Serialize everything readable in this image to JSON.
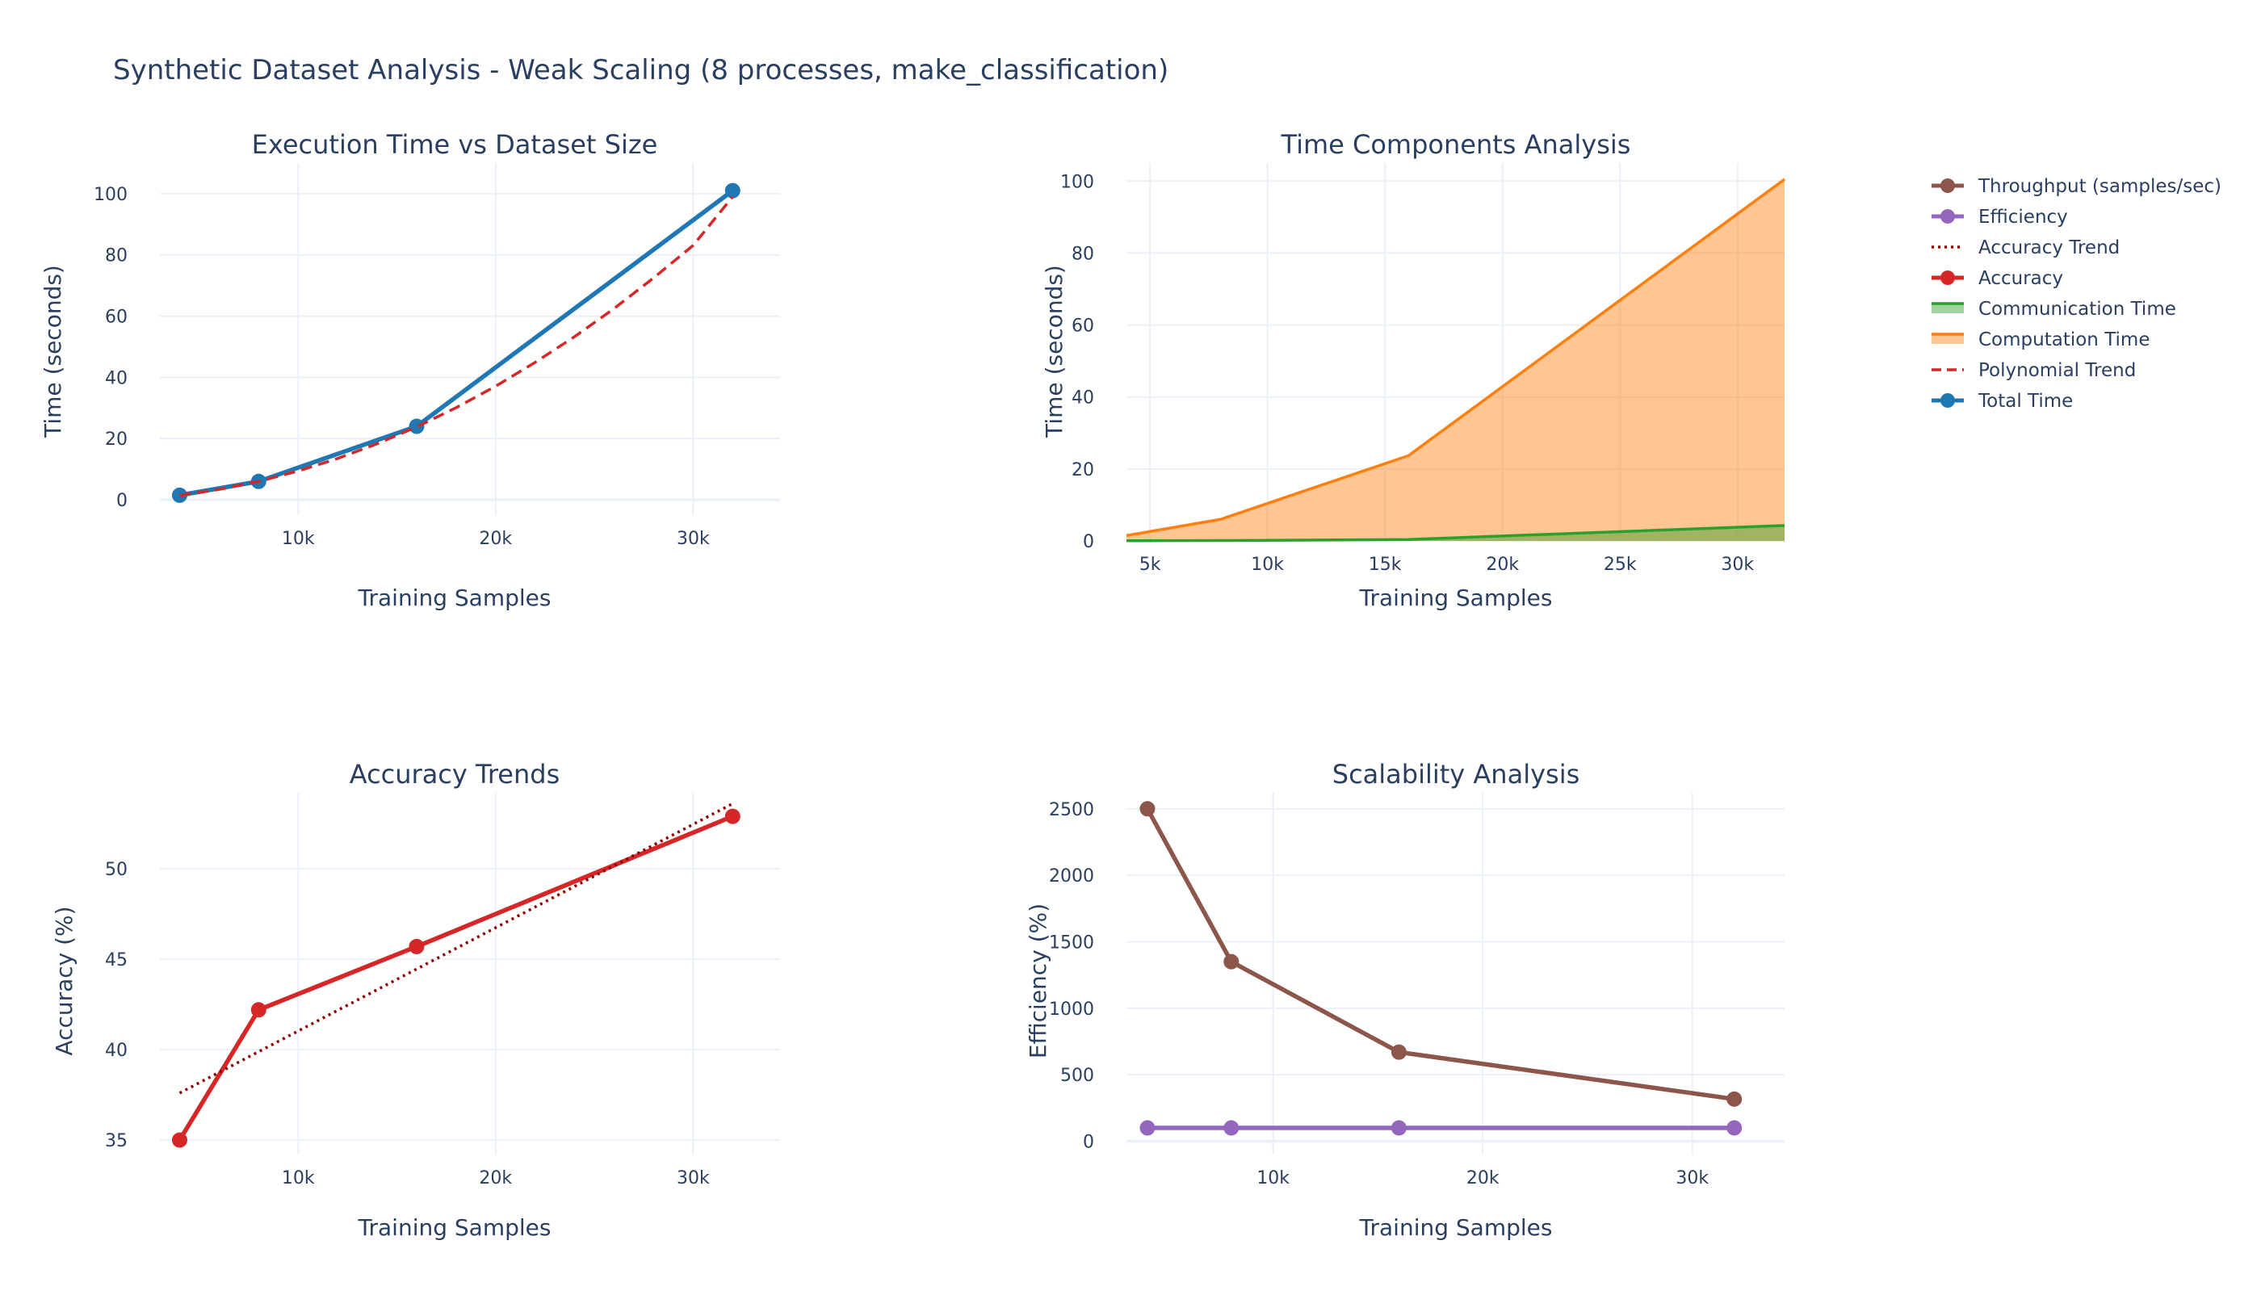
{
  "title": "Synthetic Dataset Analysis - Weak Scaling (8 processes, make_classification)",
  "colors": {
    "total": "#1f77b4",
    "poly": "#d62728",
    "computation": "#ff7f0e",
    "communication": "#2ca02c",
    "accuracy": "#d62728",
    "accuracy_trend": "#8b0000",
    "efficiency": "#9467bd",
    "throughput": "#8c564b",
    "grid": "#ebf0f8",
    "text": "#2a3f5f"
  },
  "legend": [
    {
      "label": "Throughput (samples/sec)",
      "style": "line-marker",
      "color": "#8c564b"
    },
    {
      "label": "Efficiency",
      "style": "line-marker",
      "color": "#9467bd"
    },
    {
      "label": "Accuracy Trend",
      "style": "dot",
      "color": "#8b0000"
    },
    {
      "label": "Accuracy",
      "style": "line-marker",
      "color": "#d62728"
    },
    {
      "label": "Communication Time",
      "style": "area",
      "color": "#2ca02c"
    },
    {
      "label": "Computation Time",
      "style": "area",
      "color": "#ff7f0e"
    },
    {
      "label": "Polynomial Trend",
      "style": "dash",
      "color": "#d62728"
    },
    {
      "label": "Total Time",
      "style": "line-marker",
      "color": "#1f77b4"
    }
  ],
  "chart_data": [
    {
      "type": "line",
      "title": "Execution Time vs Dataset Size",
      "xlabel": "Training Samples",
      "ylabel": "Time (seconds)",
      "xlim": [
        3000,
        34400
      ],
      "ylim": [
        -5,
        110
      ],
      "xticks": [
        10000,
        20000,
        30000
      ],
      "xtick_labels": [
        "10k",
        "20k",
        "30k"
      ],
      "yticks": [
        0,
        20,
        40,
        60,
        80,
        100
      ],
      "ytick_labels": [
        "0",
        "20",
        "40",
        "60",
        "80",
        "100"
      ],
      "series": [
        {
          "name": "Total Time",
          "style": "line-marker",
          "x": [
            4000,
            8000,
            16000,
            32000
          ],
          "y": [
            1.5,
            6.0,
            24.0,
            101.0
          ]
        },
        {
          "name": "Polynomial Trend",
          "style": "dash",
          "x": [
            4000,
            6000,
            8000,
            10000,
            12000,
            14000,
            16000,
            18000,
            20000,
            22000,
            24000,
            26000,
            28000,
            30000,
            32000
          ],
          "y": [
            1.4,
            3.4,
            6.0,
            9.4,
            13.5,
            18.3,
            23.8,
            30.1,
            37.1,
            44.9,
            53.3,
            62.5,
            72.5,
            83.1,
            99.0
          ]
        }
      ]
    },
    {
      "type": "area",
      "title": "Time Components Analysis",
      "xlabel": "Training Samples",
      "ylabel": "Time (seconds)",
      "xlim": [
        4000,
        32000
      ],
      "ylim": [
        0,
        105
      ],
      "xticks": [
        5000,
        10000,
        15000,
        20000,
        25000,
        30000
      ],
      "xtick_labels": [
        "5k",
        "10k",
        "15k",
        "20k",
        "25k",
        "30k"
      ],
      "yticks": [
        0,
        20,
        40,
        60,
        80,
        100
      ],
      "ytick_labels": [
        "0",
        "20",
        "40",
        "60",
        "80",
        "100"
      ],
      "series": [
        {
          "name": "Computation Time",
          "x": [
            4000,
            8000,
            16000,
            32000
          ],
          "y": [
            1.5,
            6.0,
            23.7,
            100.5
          ]
        },
        {
          "name": "Communication Time",
          "x": [
            4000,
            8000,
            16000,
            32000
          ],
          "y": [
            0.05,
            0.1,
            0.4,
            4.3
          ]
        }
      ]
    },
    {
      "type": "line",
      "title": "Accuracy Trends",
      "xlabel": "Training Samples",
      "ylabel": "Accuracy (%)",
      "xlim": [
        3000,
        34400
      ],
      "ylim": [
        34.2,
        54.2
      ],
      "xticks": [
        10000,
        20000,
        30000
      ],
      "xtick_labels": [
        "10k",
        "20k",
        "30k"
      ],
      "yticks": [
        35,
        40,
        45,
        50
      ],
      "ytick_labels": [
        "35",
        "40",
        "45",
        "50"
      ],
      "series": [
        {
          "name": "Accuracy",
          "style": "line-marker",
          "x": [
            4000,
            8000,
            16000,
            32000
          ],
          "y": [
            35.0,
            42.2,
            45.7,
            52.9
          ]
        },
        {
          "name": "Accuracy Trend",
          "style": "dot",
          "x": [
            4000,
            32000
          ],
          "y": [
            37.6,
            53.6
          ]
        }
      ]
    },
    {
      "type": "line",
      "title": "Scalability Analysis",
      "xlabel": "Training Samples",
      "ylabel": "Efficiency (%)",
      "xlim": [
        3000,
        34400
      ],
      "ylim": [
        -100,
        2620
      ],
      "xticks": [
        10000,
        20000,
        30000
      ],
      "xtick_labels": [
        "10k",
        "20k",
        "30k"
      ],
      "yticks": [
        0,
        500,
        1000,
        1500,
        2000,
        2500
      ],
      "ytick_labels": [
        "0",
        "500",
        "1000",
        "1500",
        "2000",
        "2500"
      ],
      "series": [
        {
          "name": "Throughput (samples/sec)",
          "style": "line-marker",
          "x": [
            4000,
            8000,
            16000,
            32000
          ],
          "y": [
            2500,
            1350,
            670,
            317
          ]
        },
        {
          "name": "Efficiency",
          "style": "line-marker",
          "x": [
            4000,
            8000,
            16000,
            32000
          ],
          "y": [
            100,
            100,
            100,
            100
          ]
        }
      ]
    }
  ]
}
